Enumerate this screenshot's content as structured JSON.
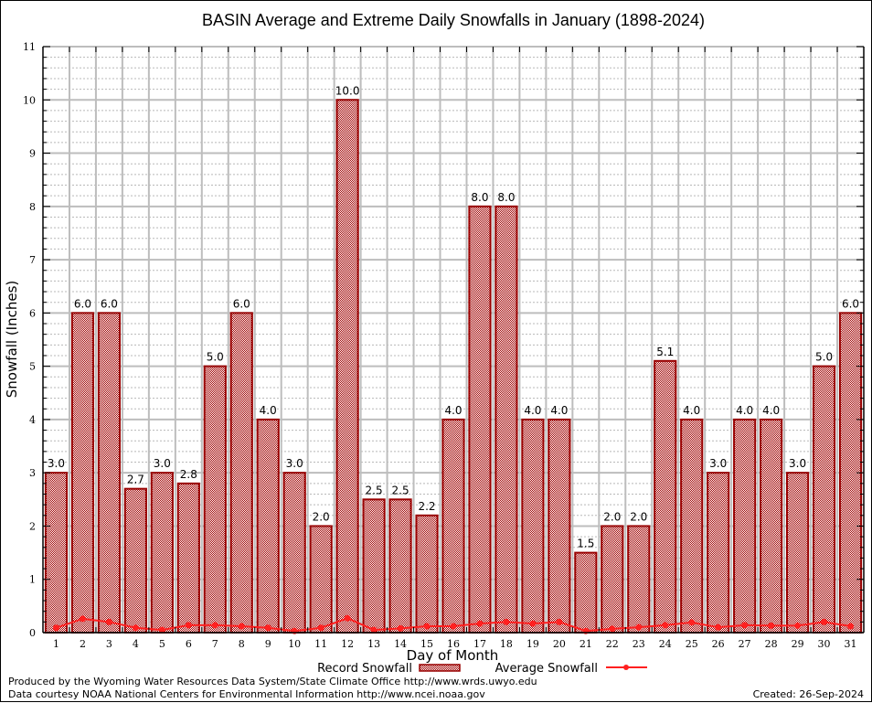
{
  "chart_data": {
    "type": "bar",
    "title": "BASIN Average and Extreme Daily Snowfalls in January (1898-2024)",
    "xlabel": "Day of Month",
    "ylabel": "Snowfall (Inches)",
    "ylim": [
      0,
      11
    ],
    "yticks": [
      "0",
      "1",
      "2",
      "3",
      "4",
      "5",
      "6",
      "7",
      "8",
      "9",
      "10",
      "11"
    ],
    "grid": true,
    "categories": [
      "1",
      "2",
      "3",
      "4",
      "5",
      "6",
      "7",
      "8",
      "9",
      "10",
      "11",
      "12",
      "13",
      "14",
      "15",
      "16",
      "17",
      "18",
      "19",
      "20",
      "21",
      "22",
      "23",
      "24",
      "25",
      "26",
      "27",
      "28",
      "29",
      "30",
      "31"
    ],
    "series": [
      {
        "name": "Record Snowfall",
        "type": "bar",
        "color": "#990000",
        "values": [
          3.0,
          6.0,
          6.0,
          2.7,
          3.0,
          2.8,
          5.0,
          6.0,
          4.0,
          3.0,
          2.0,
          10.0,
          2.5,
          2.5,
          2.2,
          4.0,
          8.0,
          8.0,
          4.0,
          4.0,
          1.5,
          2.0,
          2.0,
          5.1,
          4.0,
          3.0,
          4.0,
          4.0,
          3.0,
          5.0,
          6.0
        ],
        "labels": [
          "3.0",
          "6.0",
          "6.0",
          "2.7",
          "3.0",
          "2.8",
          "5.0",
          "6.0",
          "4.0",
          "3.0",
          "2.0",
          "10.0",
          "2.5",
          "2.5",
          "2.2",
          "4.0",
          "8.0",
          "8.0",
          "4.0",
          "4.0",
          "1.5",
          "2.0",
          "2.0",
          "5.1",
          "4.0",
          "3.0",
          "4.0",
          "4.0",
          "3.0",
          "5.0",
          "6.0"
        ]
      },
      {
        "name": "Average Snowfall",
        "type": "line",
        "color": "#ff2020",
        "values": [
          0.09,
          0.26,
          0.2,
          0.09,
          0.05,
          0.14,
          0.14,
          0.12,
          0.09,
          0.03,
          0.09,
          0.27,
          0.05,
          0.08,
          0.12,
          0.12,
          0.17,
          0.2,
          0.17,
          0.2,
          0.03,
          0.07,
          0.1,
          0.14,
          0.19,
          0.1,
          0.14,
          0.13,
          0.13,
          0.2,
          0.12
        ]
      }
    ],
    "legend": {
      "placement": "bottom",
      "record_label": "Record Snowfall",
      "average_label": "Average Snowfall"
    }
  },
  "footer": {
    "line1": "Produced by the Wyoming Water Resources Data System/State Climate Office http://www.wrds.uwyo.edu",
    "line2": "Data courtesy NOAA National Centers for Environmental Information http://www.ncei.noaa.gov",
    "created": "Created:  26-Sep-2024"
  }
}
